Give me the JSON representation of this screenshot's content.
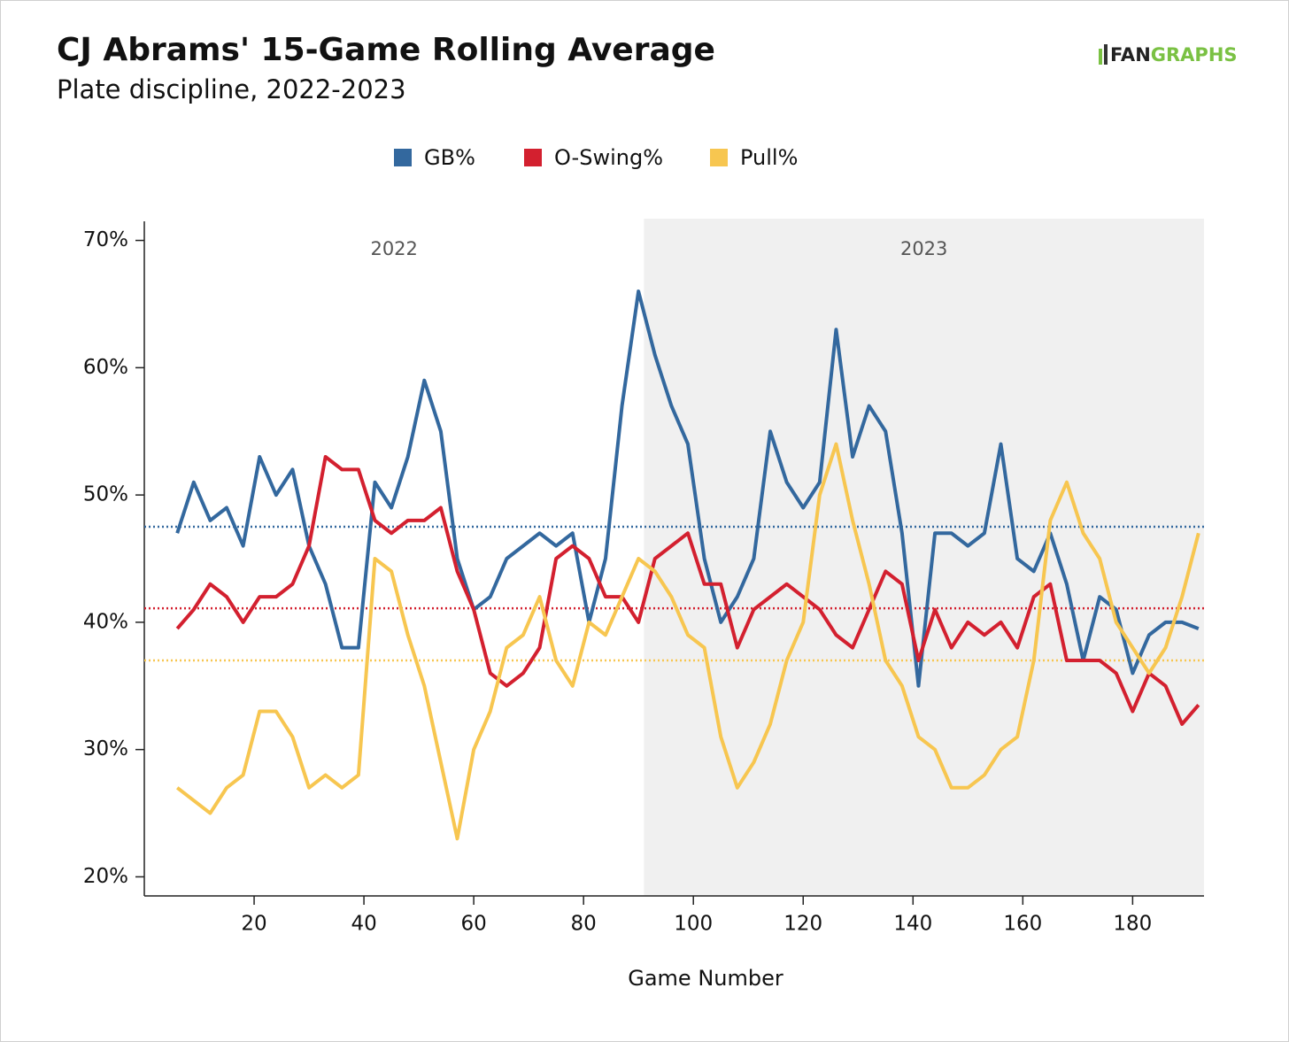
{
  "chart_data": {
    "type": "line",
    "title": "CJ Abrams' 15-Game Rolling Average",
    "subtitle": "Plate discipline, 2022-2023",
    "logo": [
      "FAN",
      "GRAPHS"
    ],
    "x_label": "Game Number",
    "x": [
      6,
      9,
      12,
      15,
      18,
      21,
      24,
      27,
      30,
      33,
      36,
      39,
      42,
      45,
      48,
      51,
      54,
      57,
      60,
      63,
      66,
      69,
      72,
      75,
      78,
      81,
      84,
      87,
      90,
      93,
      96,
      99,
      102,
      105,
      108,
      111,
      114,
      117,
      120,
      123,
      126,
      129,
      132,
      135,
      138,
      141,
      144,
      147,
      150,
      153,
      156,
      159,
      162,
      165,
      168,
      171,
      174,
      177,
      180,
      183,
      186,
      189,
      192
    ],
    "series": [
      {
        "name": "GB%",
        "color": "#33689e",
        "average": 47.5,
        "values": [
          47,
          51,
          48,
          49,
          46,
          53,
          50,
          52,
          46,
          43,
          38,
          38,
          51,
          49,
          53,
          59,
          55,
          45,
          41,
          42,
          45,
          46,
          47,
          46,
          47,
          40,
          45,
          57,
          66,
          61,
          57,
          54,
          45,
          40,
          42,
          45,
          55,
          51,
          49,
          51,
          63,
          53,
          57,
          55,
          47,
          35,
          47,
          47,
          46,
          47,
          54,
          45,
          44,
          47,
          43,
          37,
          42,
          41,
          36,
          39,
          40,
          40,
          39.5
        ]
      },
      {
        "name": "O-Swing%",
        "color": "#d3202f",
        "average": 41.1,
        "values": [
          39.5,
          41,
          43,
          42,
          40,
          42,
          42,
          43,
          46,
          53,
          52,
          52,
          48,
          47,
          48,
          48,
          49,
          44,
          41,
          36,
          35,
          36,
          38,
          45,
          46,
          45,
          42,
          42,
          40,
          45,
          46,
          47,
          43,
          43,
          38,
          41,
          42,
          43,
          42,
          41,
          39,
          38,
          41,
          44,
          43,
          37,
          41,
          38,
          40,
          39,
          40,
          38,
          42,
          43,
          37,
          37,
          37,
          36,
          33,
          36,
          35,
          32,
          33.5
        ]
      },
      {
        "name": "Pull%",
        "color": "#f7c650",
        "average": 37,
        "values": [
          27,
          26,
          25,
          27,
          28,
          33,
          33,
          31,
          27,
          28,
          27,
          28,
          45,
          44,
          39,
          35,
          29,
          23,
          30,
          33,
          38,
          39,
          42,
          37,
          35,
          40,
          39,
          42,
          45,
          44,
          42,
          39,
          38,
          31,
          27,
          29,
          32,
          37,
          40,
          50,
          54,
          48,
          43,
          37,
          35,
          31,
          30,
          27,
          27,
          28,
          30,
          31,
          37,
          48,
          51,
          47,
          45,
          40,
          38,
          36,
          38,
          42,
          47
        ]
      }
    ],
    "regions": [
      {
        "label": "2022",
        "start": 0,
        "end": 91,
        "shaded": false
      },
      {
        "label": "2023",
        "start": 91,
        "end": 193,
        "shaded": true
      }
    ],
    "xlim": [
      0,
      193
    ],
    "xticks": [
      20,
      40,
      60,
      80,
      100,
      120,
      140,
      160,
      180
    ],
    "ylim": [
      18.5,
      71.5
    ],
    "yticks": [
      {
        "value": 20,
        "label": "20%"
      },
      {
        "value": 30,
        "label": "30%"
      },
      {
        "value": 40,
        "label": "40%"
      },
      {
        "value": 50,
        "label": "50%"
      },
      {
        "value": 60,
        "label": "60%"
      },
      {
        "value": 70,
        "label": "70%"
      }
    ]
  }
}
